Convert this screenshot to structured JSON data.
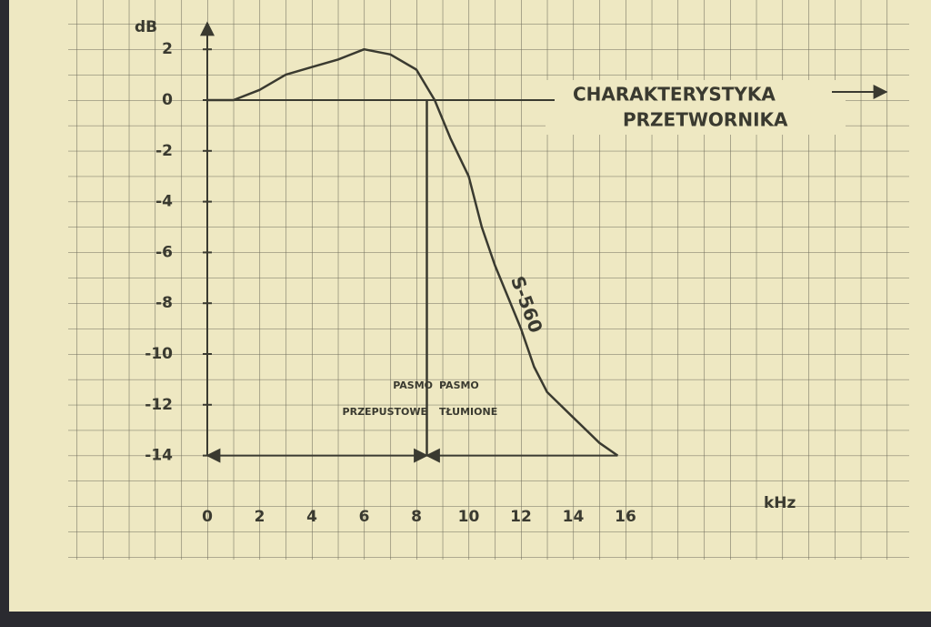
{
  "chart_data": {
    "type": "line",
    "x_label": "kHz",
    "y_label": "dB",
    "x": [
      0,
      1,
      2,
      3,
      4,
      5,
      6,
      7,
      8,
      8.7,
      9.3,
      10,
      10.5,
      11,
      12,
      12.5,
      13,
      14,
      15,
      15.7
    ],
    "values": [
      0,
      0,
      0.4,
      1.0,
      1.3,
      1.6,
      2.0,
      1.8,
      1.2,
      0,
      -1.5,
      -3,
      -5,
      -6.5,
      -9,
      -10.5,
      -11.5,
      -12.5,
      -13.5,
      -14
    ],
    "color": "#3a3a30",
    "xlim": [
      0,
      16
    ],
    "xticks": [
      0,
      2,
      4,
      6,
      8,
      10,
      12,
      14,
      16
    ],
    "ylim": [
      -14,
      2
    ],
    "yticks": [
      2,
      0,
      -2,
      -4,
      -6,
      -8,
      -10,
      -12,
      -14
    ],
    "hline": 0,
    "vline": 8.4,
    "curve_label": "S-560",
    "annotations": [
      "CHARAKTERYSTYKA",
      "PRZETWORNIKA"
    ],
    "band_left": [
      "PASMO",
      "PRZEPUSTOWE"
    ],
    "band_right": [
      "PASMO",
      "TŁUMIONE"
    ]
  }
}
